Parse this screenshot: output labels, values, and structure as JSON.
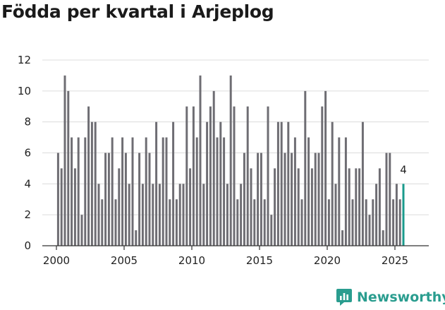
{
  "page": {
    "title": "Födda per kvartal i Arjeplog"
  },
  "brand": {
    "name": "Newsworthy"
  },
  "colors": {
    "bar": "#6e6d73",
    "highlight": "#1a9a8c",
    "grid": "#dcdcdc",
    "axis": "#333333",
    "text": "#222222"
  },
  "chart_data": {
    "type": "bar",
    "title": "Födda per kvartal i Arjeplog",
    "xlabel": "",
    "ylabel": "",
    "ylim": [
      0,
      12
    ],
    "yticks": [
      0,
      2,
      4,
      6,
      8,
      10,
      12
    ],
    "xticks": [
      2000,
      2005,
      2010,
      2015,
      2020,
      2025
    ],
    "xlim": [
      2000,
      2026.5
    ],
    "start": 2000.0,
    "step": 0.25,
    "values": [
      6,
      5,
      11,
      10,
      7,
      5,
      7,
      2,
      7,
      9,
      8,
      8,
      4,
      3,
      6,
      6,
      7,
      3,
      5,
      7,
      6,
      4,
      7,
      1,
      6,
      4,
      7,
      6,
      4,
      8,
      4,
      7,
      7,
      3,
      8,
      3,
      4,
      4,
      9,
      5,
      9,
      7,
      11,
      4,
      8,
      9,
      10,
      7,
      8,
      7,
      4,
      11,
      9,
      3,
      4,
      6,
      9,
      5,
      3,
      6,
      6,
      3,
      9,
      2,
      5,
      8,
      8,
      6,
      8,
      6,
      7,
      5,
      3,
      10,
      7,
      5,
      6,
      6,
      9,
      10,
      3,
      8,
      4,
      7,
      1,
      7,
      5,
      3,
      5,
      5,
      8,
      3,
      2,
      3,
      4,
      5,
      1,
      6,
      6,
      3,
      4,
      3,
      4
    ],
    "highlight_label": "4"
  }
}
